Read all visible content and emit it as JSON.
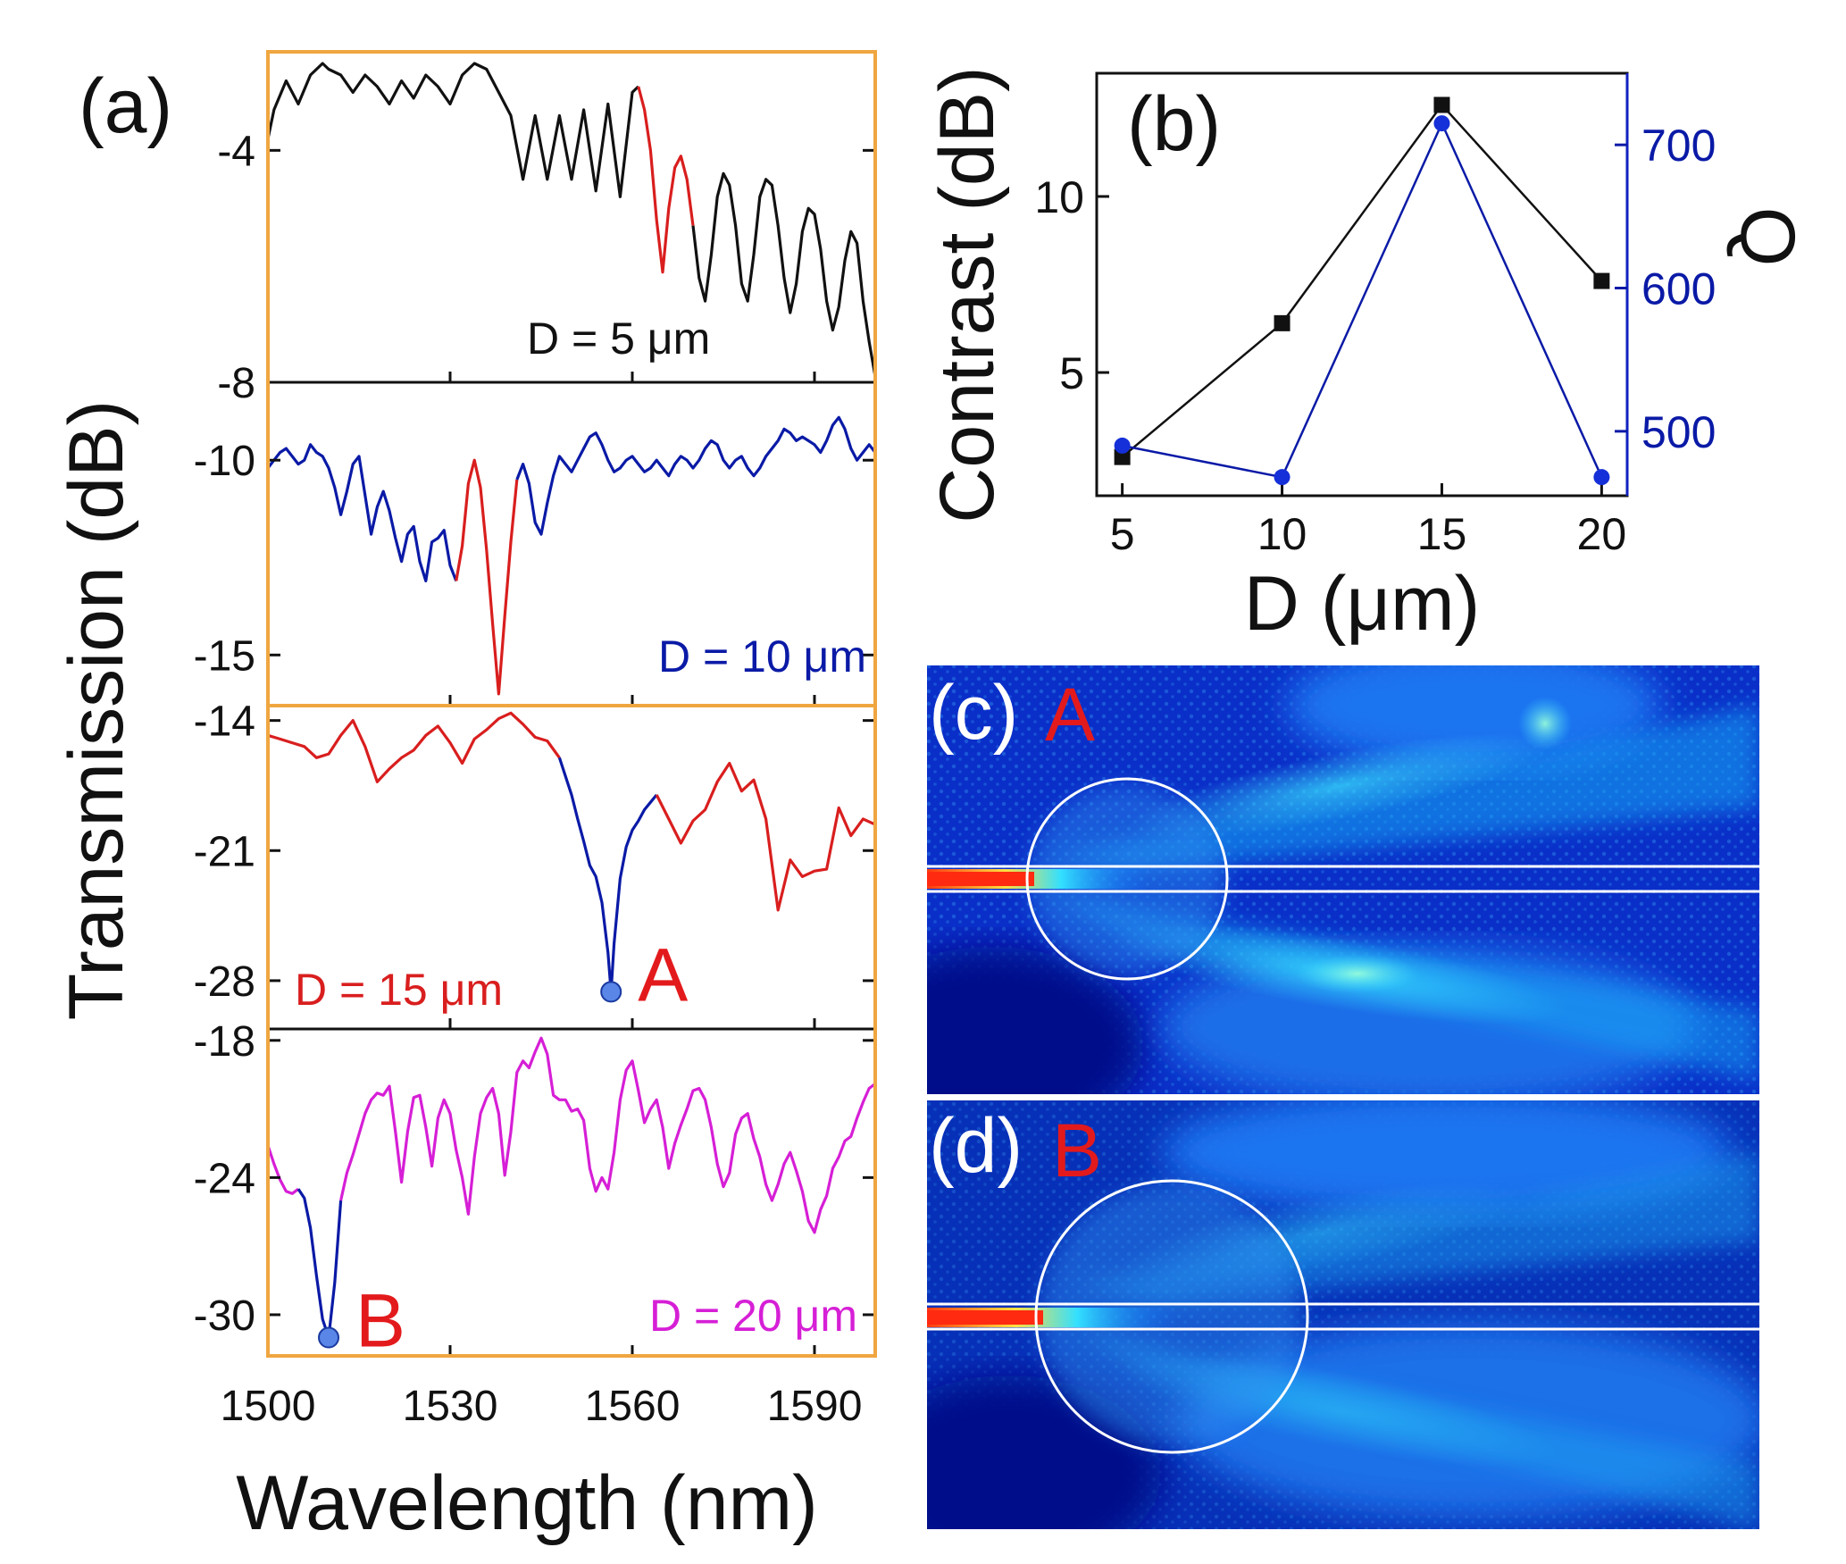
{
  "panel_labels": {
    "a": "(a)",
    "b": "(b)",
    "c": "(c)",
    "d": "(d)"
  },
  "colors": {
    "black": "#111111",
    "blue": "#0a1aa6",
    "red": "#d91e1e",
    "magenta": "#d61fd6",
    "frame_orange": "#f0a640",
    "marker_red": "#e31a1c",
    "field_dark": "#000a8a",
    "field_mid": "#0b55e6",
    "field_light": "#27c8f0"
  },
  "chart_data": [
    {
      "id": "a",
      "type": "line",
      "xlabel": "Wavelength (nm)",
      "ylabel": "Transmission (dB)",
      "xlim": [
        1500,
        1600
      ],
      "xticks": [
        1500,
        1530,
        1560,
        1590
      ],
      "panels": [
        {
          "label": "D = 5 μm",
          "color": "#111111",
          "highlight_color": "#d91e1e",
          "highlight_x": [
            1562,
            1570
          ],
          "ylim": [
            -8,
            -2.3
          ],
          "yticks": [
            -4,
            -8
          ],
          "x": [
            1500,
            1501,
            1503,
            1505,
            1507,
            1509,
            1510,
            1512,
            1514,
            1516,
            1518,
            1520,
            1522,
            1524,
            1526,
            1528,
            1530,
            1532,
            1534,
            1536,
            1538,
            1540,
            1542,
            1544,
            1546,
            1548,
            1550,
            1552,
            1554,
            1556,
            1558,
            1560,
            1561,
            1562,
            1563,
            1564,
            1565,
            1566,
            1567,
            1568,
            1569,
            1570,
            1571,
            1572,
            1573,
            1574,
            1575,
            1576,
            1577,
            1578,
            1579,
            1580,
            1581,
            1582,
            1583,
            1584,
            1585,
            1586,
            1587,
            1588,
            1589,
            1590,
            1591,
            1592,
            1593,
            1594,
            1595,
            1596,
            1597,
            1598,
            1599,
            1600
          ],
          "y": [
            -3.8,
            -3.3,
            -2.8,
            -3.2,
            -2.7,
            -2.5,
            -2.6,
            -2.7,
            -3.0,
            -2.7,
            -2.9,
            -3.2,
            -2.8,
            -3.1,
            -2.7,
            -2.9,
            -3.2,
            -2.7,
            -2.5,
            -2.6,
            -3.0,
            -3.4,
            -4.5,
            -3.4,
            -4.5,
            -3.4,
            -4.5,
            -3.3,
            -4.7,
            -3.2,
            -4.8,
            -3.0,
            -2.9,
            -3.3,
            -4.0,
            -5.2,
            -6.1,
            -5.0,
            -4.3,
            -4.1,
            -4.5,
            -5.3,
            -6.2,
            -6.6,
            -5.8,
            -4.8,
            -4.4,
            -4.6,
            -5.3,
            -6.3,
            -6.6,
            -5.8,
            -4.8,
            -4.5,
            -4.6,
            -5.3,
            -6.2,
            -6.8,
            -6.3,
            -5.4,
            -5.0,
            -5.1,
            -5.7,
            -6.6,
            -7.1,
            -6.7,
            -5.9,
            -5.4,
            -5.6,
            -6.6,
            -7.3,
            -7.9
          ]
        },
        {
          "label": "D = 10 μm",
          "color": "#0a1aa6",
          "highlight_color": "#d91e1e",
          "highlight_x": [
            1532,
            1541
          ],
          "ylim": [
            -16.3,
            -8
          ],
          "yticks": [
            -10,
            -15
          ],
          "x": [
            1500,
            1501,
            1502,
            1503,
            1504,
            1505,
            1506,
            1507,
            1508,
            1509,
            1510,
            1511,
            1512,
            1513,
            1514,
            1515,
            1516,
            1517,
            1518,
            1519,
            1520,
            1521,
            1522,
            1523,
            1524,
            1525,
            1526,
            1527,
            1528,
            1529,
            1530,
            1531,
            1532,
            1533,
            1534,
            1535,
            1536,
            1537,
            1538,
            1539,
            1540,
            1541,
            1542,
            1543,
            1544,
            1545,
            1546,
            1547,
            1548,
            1549,
            1550,
            1551,
            1552,
            1553,
            1554,
            1555,
            1556,
            1557,
            1558,
            1559,
            1560,
            1561,
            1562,
            1563,
            1564,
            1565,
            1566,
            1567,
            1568,
            1569,
            1570,
            1571,
            1572,
            1573,
            1574,
            1575,
            1576,
            1577,
            1578,
            1579,
            1580,
            1581,
            1582,
            1583,
            1584,
            1585,
            1586,
            1587,
            1588,
            1589,
            1590,
            1591,
            1592,
            1593,
            1594,
            1595,
            1596,
            1597,
            1598,
            1599,
            1600
          ],
          "y": [
            -10.2,
            -10.0,
            -9.8,
            -9.7,
            -9.9,
            -10.1,
            -10.0,
            -9.6,
            -9.8,
            -9.9,
            -10.2,
            -10.7,
            -11.4,
            -10.8,
            -10.1,
            -9.9,
            -10.9,
            -11.9,
            -11.2,
            -10.8,
            -11.3,
            -12.0,
            -12.6,
            -11.9,
            -11.7,
            -12.6,
            -13.1,
            -12.1,
            -12.0,
            -11.8,
            -12.7,
            -13.1,
            -12.2,
            -10.6,
            -10.0,
            -10.7,
            -12.3,
            -14.2,
            -16.0,
            -14.0,
            -12.1,
            -10.5,
            -10.1,
            -10.6,
            -11.6,
            -11.9,
            -11.1,
            -10.4,
            -9.9,
            -10.1,
            -10.3,
            -10.0,
            -9.7,
            -9.4,
            -9.3,
            -9.6,
            -10.0,
            -10.3,
            -10.2,
            -10.0,
            -9.9,
            -10.1,
            -10.3,
            -10.2,
            -10.0,
            -10.2,
            -10.4,
            -10.1,
            -9.9,
            -10.0,
            -10.2,
            -10.0,
            -9.7,
            -9.5,
            -9.6,
            -10.0,
            -10.2,
            -10.0,
            -9.9,
            -10.2,
            -10.4,
            -10.2,
            -9.9,
            -9.7,
            -9.5,
            -9.2,
            -9.3,
            -9.5,
            -9.4,
            -9.5,
            -9.6,
            -9.8,
            -9.5,
            -9.1,
            -8.9,
            -9.2,
            -9.7,
            -10.0,
            -9.8,
            -9.6,
            -9.8
          ]
        },
        {
          "label": "D = 15 μm",
          "color": "#d91e1e",
          "highlight_color": "#0a1aa6",
          "highlight_x": [
            1550,
            1564
          ],
          "ylim": [
            -30.6,
            -13.2
          ],
          "yticks": [
            -14,
            -21,
            -28
          ],
          "marker": {
            "label": "A",
            "x": 1556.5,
            "y": -28.6
          },
          "x": [
            1500,
            1502,
            1504,
            1506,
            1508,
            1510,
            1512,
            1514,
            1516,
            1518,
            1520,
            1522,
            1524,
            1526,
            1528,
            1530,
            1532,
            1534,
            1536,
            1538,
            1540,
            1542,
            1544,
            1546,
            1548,
            1550,
            1551,
            1552,
            1553,
            1554,
            1555,
            1556,
            1556.5,
            1557,
            1558,
            1559,
            1560,
            1561,
            1562,
            1563,
            1564,
            1566,
            1568,
            1570,
            1572,
            1574,
            1576,
            1578,
            1580,
            1582,
            1584,
            1586,
            1588,
            1590,
            1592,
            1594,
            1596,
            1598,
            1600
          ],
          "y": [
            -14.8,
            -15.0,
            -15.2,
            -15.4,
            -16.0,
            -15.8,
            -14.8,
            -14.0,
            -15.4,
            -17.3,
            -16.6,
            -16.0,
            -15.6,
            -14.8,
            -14.3,
            -15.2,
            -16.3,
            -15.0,
            -14.5,
            -13.9,
            -13.6,
            -14.2,
            -14.9,
            -15.1,
            -16.0,
            -18.0,
            -19.3,
            -20.5,
            -21.8,
            -22.4,
            -23.8,
            -26.5,
            -28.6,
            -26.0,
            -22.5,
            -20.8,
            -19.9,
            -19.4,
            -18.8,
            -18.4,
            -18.0,
            -19.3,
            -20.6,
            -19.4,
            -18.8,
            -17.3,
            -16.3,
            -17.8,
            -17.2,
            -19.3,
            -24.2,
            -21.5,
            -22.4,
            -22.1,
            -22.0,
            -18.7,
            -20.2,
            -19.3,
            -19.6
          ]
        },
        {
          "label": "D = 20 μm",
          "color": "#d61fd6",
          "highlight_color": "#0a1aa6",
          "highlight_x": [
            1506,
            1512
          ],
          "ylim": [
            -31.8,
            -17.5
          ],
          "yticks": [
            -18,
            -24,
            -30
          ],
          "marker": {
            "label": "B",
            "x": 1510,
            "y": -31.0
          },
          "x": [
            1500,
            1501,
            1502,
            1503,
            1504,
            1505,
            1506,
            1507,
            1508,
            1509,
            1510,
            1511,
            1512,
            1513,
            1514,
            1515,
            1516,
            1517,
            1518,
            1519,
            1520,
            1521,
            1522,
            1523,
            1524,
            1525,
            1526,
            1527,
            1528,
            1529,
            1530,
            1531,
            1532,
            1533,
            1534,
            1535,
            1536,
            1537,
            1538,
            1539,
            1540,
            1541,
            1542,
            1543,
            1544,
            1545,
            1546,
            1547,
            1548,
            1549,
            1550,
            1551,
            1552,
            1553,
            1554,
            1555,
            1556,
            1557,
            1558,
            1559,
            1560,
            1561,
            1562,
            1563,
            1564,
            1565,
            1566,
            1567,
            1568,
            1569,
            1570,
            1571,
            1572,
            1573,
            1574,
            1575,
            1576,
            1577,
            1578,
            1579,
            1580,
            1581,
            1582,
            1583,
            1584,
            1585,
            1586,
            1587,
            1588,
            1589,
            1590,
            1591,
            1592,
            1593,
            1594,
            1595,
            1596,
            1597,
            1598,
            1599,
            1600
          ],
          "y": [
            -22.6,
            -23.4,
            -24.1,
            -24.6,
            -24.7,
            -24.5,
            -24.9,
            -26.2,
            -28.3,
            -30.2,
            -31.0,
            -28.6,
            -25.0,
            -23.8,
            -23.0,
            -22.1,
            -21.2,
            -20.6,
            -20.3,
            -20.4,
            -20.0,
            -22.0,
            -24.2,
            -22.0,
            -20.5,
            -20.4,
            -21.8,
            -23.5,
            -21.4,
            -20.6,
            -21.2,
            -22.8,
            -24.0,
            -25.6,
            -23.1,
            -21.2,
            -20.5,
            -20.1,
            -21.2,
            -23.9,
            -22.0,
            -19.4,
            -18.9,
            -19.2,
            -18.5,
            -17.9,
            -18.6,
            -20.4,
            -20.6,
            -20.6,
            -21.1,
            -21.0,
            -21.5,
            -23.6,
            -24.6,
            -24.0,
            -24.5,
            -22.9,
            -20.6,
            -19.3,
            -18.9,
            -20.2,
            -21.6,
            -21.0,
            -20.6,
            -21.8,
            -23.6,
            -22.5,
            -21.7,
            -21.0,
            -20.2,
            -20.1,
            -20.6,
            -21.8,
            -23.4,
            -24.4,
            -23.8,
            -22.1,
            -21.4,
            -21.2,
            -22.3,
            -23.1,
            -24.3,
            -25.0,
            -24.3,
            -23.4,
            -22.9,
            -23.7,
            -24.6,
            -25.9,
            -26.4,
            -25.4,
            -24.8,
            -23.6,
            -23.1,
            -22.4,
            -22.2,
            -21.4,
            -20.7,
            -20.1,
            -19.9
          ]
        }
      ]
    },
    {
      "id": "b",
      "type": "line",
      "xlabel": "D (μm)",
      "ylabel": "Contrast (dB)",
      "y2label": "Q",
      "x": [
        5,
        10,
        15,
        20
      ],
      "xlim": [
        4.2,
        20.8
      ],
      "xticks": [
        5,
        10,
        15,
        20
      ],
      "ylim": [
        1.5,
        13.5
      ],
      "yticks": [
        5,
        10
      ],
      "y2lim": [
        455,
        750
      ],
      "y2ticks": [
        500,
        600,
        700
      ],
      "series": [
        {
          "name": "Contrast",
          "axis": "left",
          "color": "#111111",
          "marker": "square",
          "values": [
            2.6,
            6.4,
            12.6,
            7.6
          ]
        },
        {
          "name": "Q",
          "axis": "right",
          "color": "#0a1aa6",
          "marker": "circle",
          "values": [
            490,
            468,
            715,
            468
          ]
        }
      ]
    },
    {
      "id": "c",
      "type": "heatmap",
      "mode_label": "A"
    },
    {
      "id": "d",
      "type": "heatmap",
      "mode_label": "B"
    }
  ]
}
